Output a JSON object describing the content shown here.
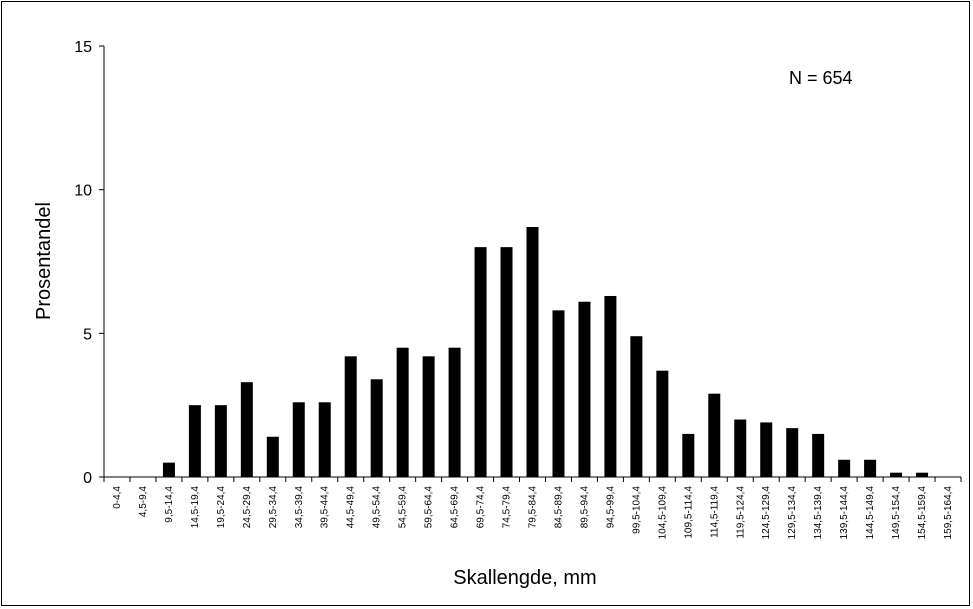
{
  "chart_data": {
    "type": "bar",
    "title": "",
    "xlabel": "Skallengde, mm",
    "ylabel": "Prosentandel",
    "annotation": "N = 654",
    "ylim": [
      0,
      15
    ],
    "yticks": [
      "0",
      "5",
      "10",
      "15"
    ],
    "grid": false,
    "legend": "none",
    "bar_color": "#000000",
    "categories": [
      "0-4,4",
      "4,5-9,4",
      "9,5-14,4",
      "14,5-19,4",
      "19,5-24,4",
      "24,5-29,4",
      "29,5-34,4",
      "34,5-39,4",
      "39,5-44,4",
      "44,5-49,4",
      "49,5-54,4",
      "54,5-59,4",
      "59,5-64,4",
      "64,5-69,4",
      "69,5-74,4",
      "74,5-79,4",
      "79,5-84,4",
      "84,5-89,4",
      "89,5-94,4",
      "94,5-99,4",
      "99,5-104,4",
      "104,5-109,4",
      "109,5-114,4",
      "114,5-119,4",
      "119,5-124,4",
      "124,5-129,4",
      "129,5-134,4",
      "134,5-139,4",
      "139,5-144,4",
      "144,5-149,4",
      "149,5-154,4",
      "154,5-159,4",
      "159,5-164,4"
    ],
    "values": [
      0,
      0,
      0.5,
      2.5,
      2.5,
      3.3,
      1.4,
      2.6,
      2.6,
      4.2,
      3.4,
      4.5,
      4.2,
      4.5,
      8.0,
      8.0,
      8.7,
      5.8,
      6.1,
      6.3,
      4.9,
      3.7,
      1.5,
      2.9,
      2.0,
      1.9,
      1.7,
      1.5,
      0.6,
      0.6,
      0.15,
      0.15,
      0
    ]
  }
}
